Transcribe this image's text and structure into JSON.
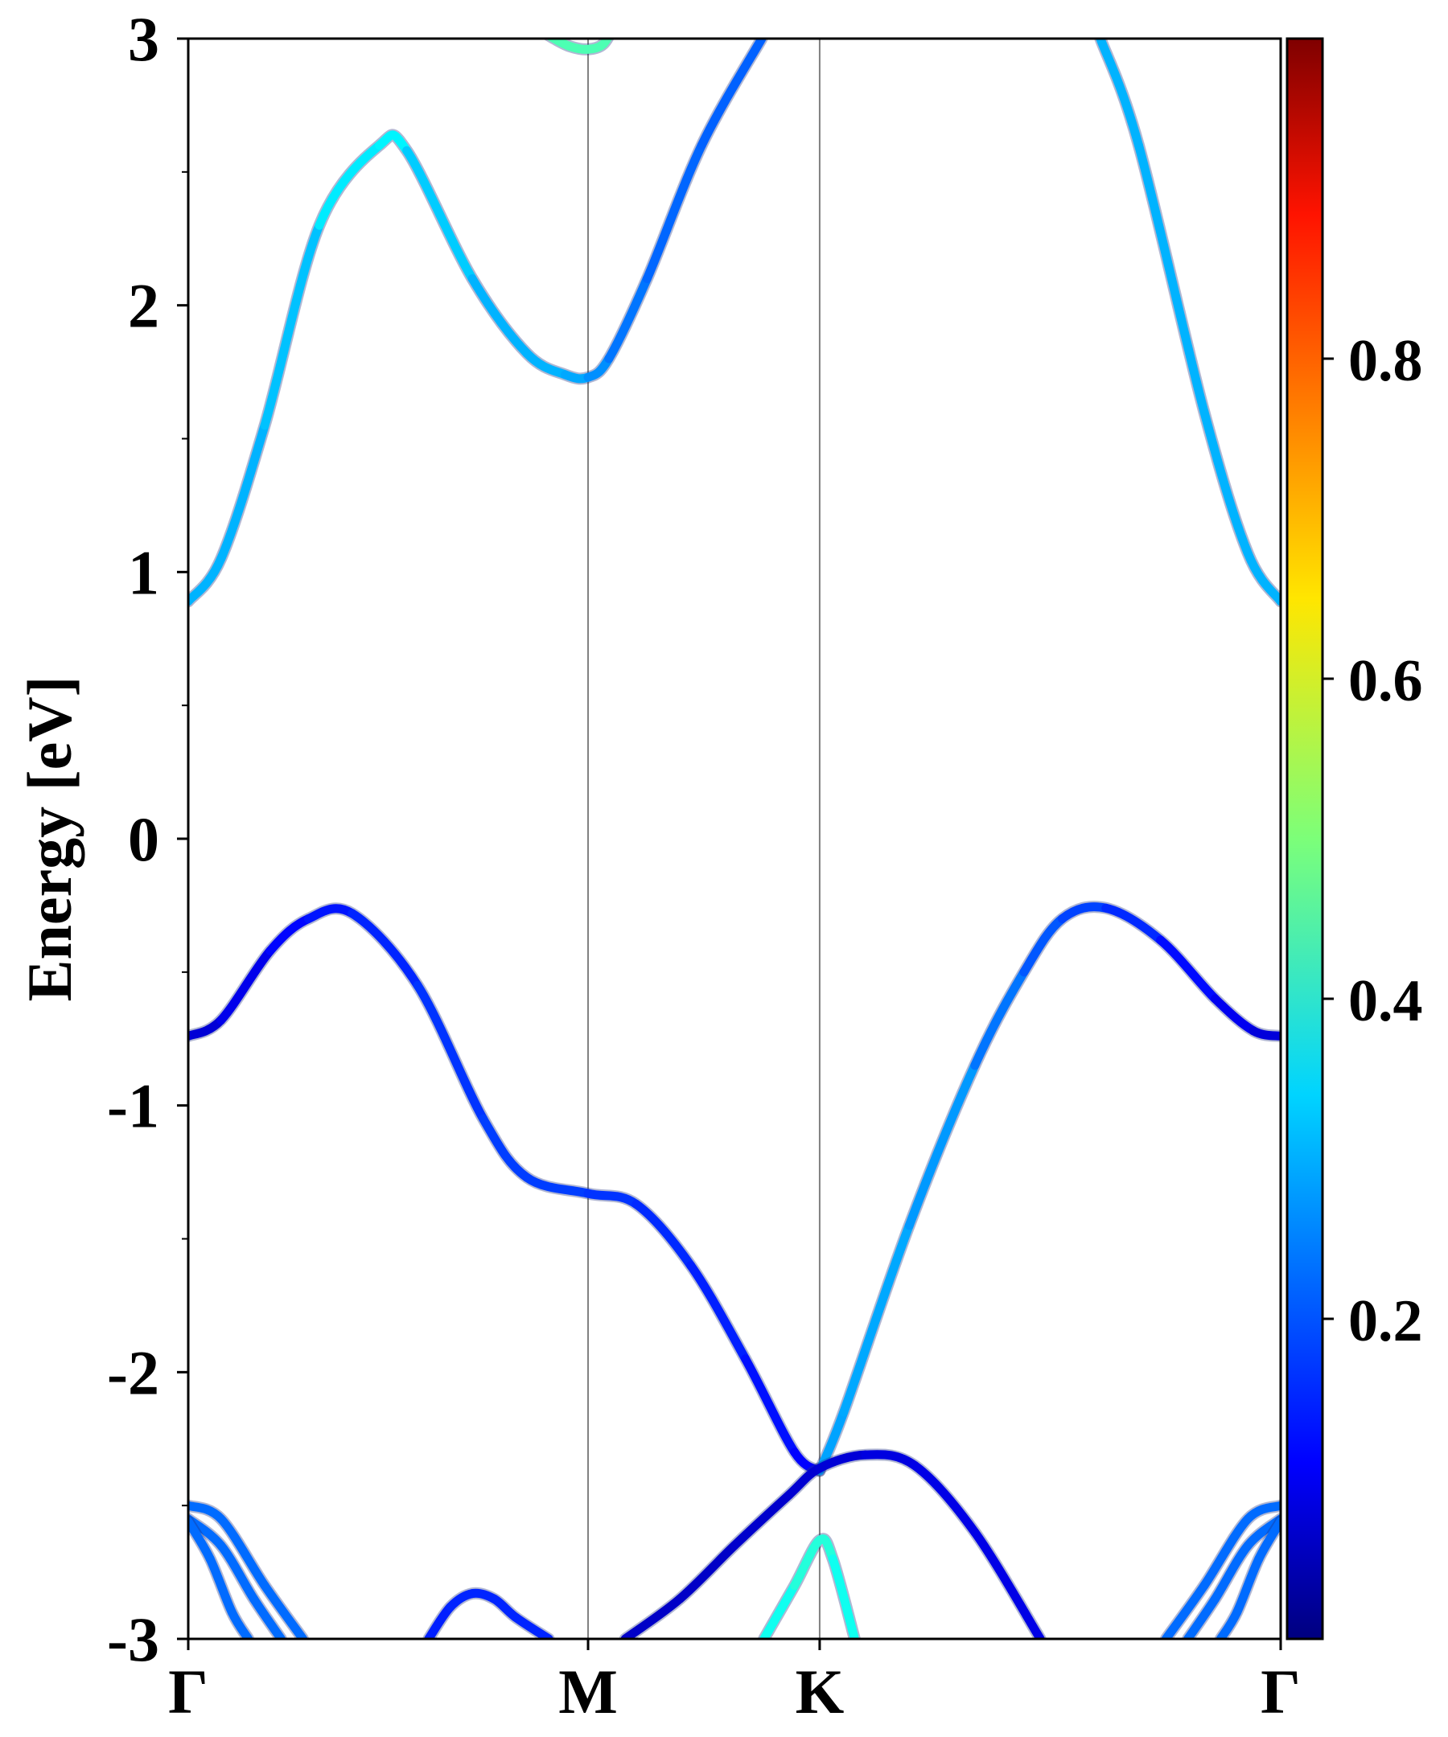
{
  "chart_data": {
    "type": "line",
    "title": "",
    "xlabel": "",
    "ylabel": "Energy [eV]",
    "ylim": [
      -3,
      3
    ],
    "xlim": [
      0,
      1
    ],
    "yticks": [
      -3,
      -2,
      -1,
      0,
      1,
      2,
      3
    ],
    "ytick_labels": [
      "-3",
      "-2",
      "-1",
      "0",
      "1",
      "2",
      "3"
    ],
    "kpoints": [
      {
        "label": "Γ",
        "x": 0.0
      },
      {
        "label": "M",
        "x": 0.366
      },
      {
        "label": "K",
        "x": 0.578
      },
      {
        "label": "Γ",
        "x": 1.0
      }
    ],
    "grid": false,
    "colorbar": {
      "ticks": [
        0.2,
        0.4,
        0.6,
        0.8
      ],
      "tick_labels": [
        "0.2",
        "0.4",
        "0.6",
        "0.8"
      ],
      "range": [
        0.0,
        1.0
      ],
      "colormap": "jet"
    },
    "bands": [
      {
        "points": [
          [
            0.0,
            0.89,
            0.3
          ],
          [
            0.03,
            1.05,
            0.3
          ],
          [
            0.07,
            1.55,
            0.3
          ],
          [
            0.12,
            2.3,
            0.33
          ],
          [
            0.175,
            2.6,
            0.38
          ],
          [
            0.2,
            2.58,
            0.35
          ],
          [
            0.26,
            2.1,
            0.3
          ],
          [
            0.31,
            1.82,
            0.3
          ],
          [
            0.345,
            1.74,
            0.3
          ],
          [
            0.366,
            1.73,
            0.28
          ],
          [
            0.385,
            1.8,
            0.25
          ],
          [
            0.42,
            2.1,
            0.23
          ],
          [
            0.47,
            2.6,
            0.22
          ],
          [
            0.525,
            3.0,
            0.22
          ]
        ]
      },
      {
        "points": [
          [
            0.835,
            3.0,
            0.3
          ],
          [
            0.87,
            2.6,
            0.3
          ],
          [
            0.93,
            1.6,
            0.3
          ],
          [
            0.97,
            1.07,
            0.3
          ],
          [
            1.0,
            0.89,
            0.3
          ]
        ]
      },
      {
        "points": [
          [
            0.315,
            3.05,
            0.45
          ],
          [
            0.335,
            3.0,
            0.45
          ],
          [
            0.35,
            2.97,
            0.45
          ],
          [
            0.366,
            2.96,
            0.45
          ],
          [
            0.38,
            2.98,
            0.45
          ],
          [
            0.39,
            3.05,
            0.45
          ]
        ]
      },
      {
        "points": [
          [
            0.0,
            -0.74,
            0.08
          ],
          [
            0.03,
            -0.68,
            0.09
          ],
          [
            0.075,
            -0.42,
            0.12
          ],
          [
            0.11,
            -0.3,
            0.14
          ],
          [
            0.15,
            -0.28,
            0.15
          ],
          [
            0.21,
            -0.55,
            0.17
          ],
          [
            0.27,
            -1.05,
            0.18
          ],
          [
            0.31,
            -1.27,
            0.19
          ],
          [
            0.366,
            -1.33,
            0.18
          ],
          [
            0.41,
            -1.37,
            0.17
          ],
          [
            0.46,
            -1.6,
            0.16
          ],
          [
            0.51,
            -1.95,
            0.15
          ],
          [
            0.555,
            -2.3,
            0.13
          ],
          [
            0.578,
            -2.37,
            0.12
          ]
        ]
      },
      {
        "points": [
          [
            0.578,
            -2.37,
            0.28
          ],
          [
            0.6,
            -2.15,
            0.29
          ],
          [
            0.66,
            -1.45,
            0.29
          ],
          [
            0.72,
            -0.85,
            0.26
          ],
          [
            0.765,
            -0.5,
            0.22
          ],
          [
            0.8,
            -0.3,
            0.2
          ],
          [
            0.84,
            -0.26,
            0.18
          ],
          [
            0.89,
            -0.38,
            0.15
          ],
          [
            0.94,
            -0.6,
            0.12
          ],
          [
            0.975,
            -0.72,
            0.1
          ],
          [
            1.0,
            -0.74,
            0.08
          ]
        ]
      },
      {
        "points": [
          [
            0.22,
            -3.0,
            0.15
          ],
          [
            0.24,
            -2.88,
            0.16
          ],
          [
            0.26,
            -2.83,
            0.16
          ],
          [
            0.28,
            -2.85,
            0.16
          ],
          [
            0.3,
            -2.92,
            0.16
          ],
          [
            0.33,
            -3.0,
            0.16
          ]
        ]
      },
      {
        "points": [
          [
            0.4,
            -3.0,
            0.07
          ],
          [
            0.45,
            -2.85,
            0.07
          ],
          [
            0.5,
            -2.65,
            0.07
          ],
          [
            0.55,
            -2.46,
            0.08
          ],
          [
            0.578,
            -2.36,
            0.08
          ],
          [
            0.62,
            -2.31,
            0.09
          ],
          [
            0.665,
            -2.35,
            0.1
          ],
          [
            0.72,
            -2.6,
            0.1
          ],
          [
            0.78,
            -3.0,
            0.1
          ]
        ]
      },
      {
        "points": [
          [
            0.527,
            -3.0,
            0.38
          ],
          [
            0.555,
            -2.8,
            0.4
          ],
          [
            0.578,
            -2.63,
            0.42
          ],
          [
            0.59,
            -2.7,
            0.4
          ],
          [
            0.61,
            -3.0,
            0.38
          ]
        ]
      },
      {
        "points": [
          [
            0.0,
            -2.5,
            0.23
          ],
          [
            0.03,
            -2.55,
            0.23
          ],
          [
            0.07,
            -2.8,
            0.23
          ],
          [
            0.105,
            -3.0,
            0.23
          ]
        ]
      },
      {
        "points": [
          [
            0.0,
            -2.55,
            0.23
          ],
          [
            0.03,
            -2.65,
            0.23
          ],
          [
            0.06,
            -2.85,
            0.23
          ],
          [
            0.085,
            -3.0,
            0.23
          ]
        ]
      },
      {
        "points": [
          [
            0.0,
            -2.56,
            0.23
          ],
          [
            0.02,
            -2.7,
            0.23
          ],
          [
            0.04,
            -2.9,
            0.23
          ],
          [
            0.055,
            -3.0,
            0.23
          ]
        ]
      },
      {
        "points": [
          [
            0.895,
            -3.0,
            0.23
          ],
          [
            0.93,
            -2.8,
            0.23
          ],
          [
            0.97,
            -2.55,
            0.23
          ],
          [
            1.0,
            -2.5,
            0.23
          ]
        ]
      },
      {
        "points": [
          [
            0.915,
            -3.0,
            0.23
          ],
          [
            0.94,
            -2.85,
            0.23
          ],
          [
            0.97,
            -2.65,
            0.23
          ],
          [
            1.0,
            -2.55,
            0.23
          ]
        ]
      },
      {
        "points": [
          [
            0.945,
            -3.0,
            0.23
          ],
          [
            0.96,
            -2.9,
            0.23
          ],
          [
            0.98,
            -2.7,
            0.23
          ],
          [
            1.0,
            -2.56,
            0.23
          ]
        ]
      }
    ]
  }
}
